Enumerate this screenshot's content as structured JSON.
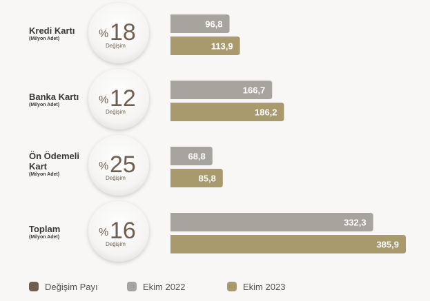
{
  "chart_data": {
    "type": "bar",
    "orientation": "horizontal",
    "categories": [
      {
        "name_lines": [
          "Kredi Kartı"
        ],
        "unit": "(Milyon Adet)",
        "change_prefix": "%",
        "change": "18",
        "change_label": "Değişim"
      },
      {
        "name_lines": [
          "Banka Kartı"
        ],
        "unit": "(Milyon Adet)",
        "change_prefix": "%",
        "change": "12",
        "change_label": "Değişim"
      },
      {
        "name_lines": [
          "Ön Ödemeli",
          "Kart"
        ],
        "unit": "(Milyon Adet)",
        "change_prefix": "%",
        "change": "25",
        "change_label": "Değişim"
      },
      {
        "name_lines": [
          "Toplam"
        ],
        "unit": "(Milyon Adet)",
        "change_prefix": "%",
        "change": "16",
        "change_label": "Değişim"
      }
    ],
    "series": [
      {
        "name": "Ekim 2022",
        "color": "#a7a39f",
        "values": [
          96.8,
          166.7,
          68.8,
          332.3
        ],
        "labels": [
          "96,8",
          "166,7",
          "68,8",
          "332,3"
        ]
      },
      {
        "name": "Ekim 2023",
        "color": "#a99a6e",
        "values": [
          113.9,
          186.2,
          85.8,
          385.9
        ],
        "labels": [
          "113,9",
          "186,2",
          "85,8",
          "385,9"
        ]
      }
    ],
    "legend": {
      "position": "bottom",
      "items": [
        {
          "label": "Değişim Payı",
          "color": "#6e5f52"
        },
        {
          "label": "Ekim 2022",
          "color": "#a7a39f"
        },
        {
          "label": "Ekim 2023",
          "color": "#a99a6e"
        }
      ]
    },
    "colors": {
      "circle_number": "#6e5f52",
      "label_text": "#3a3634",
      "bar_text": "#ffffff"
    }
  }
}
